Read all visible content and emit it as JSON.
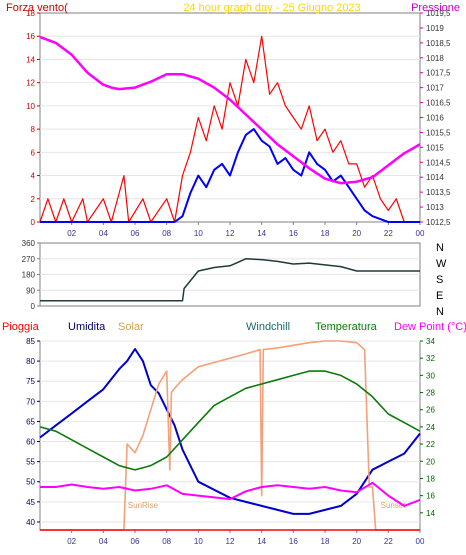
{
  "chart_data": [
    {
      "type": "line",
      "title": "24 hour graph day - 25 Giugno 2023",
      "left_label": "Forza vento(",
      "right_label": "Pressione",
      "x_tick_labels": [
        "02",
        "04",
        "06",
        "08",
        "10",
        "12",
        "14",
        "16",
        "18",
        "20",
        "22",
        "00"
      ],
      "x_range": [
        0,
        24
      ],
      "ylim_left": [
        0,
        18
      ],
      "y_tick_labels_left": [
        "0",
        "2",
        "4",
        "6",
        "8",
        "10",
        "12",
        "14",
        "16",
        "18"
      ],
      "ylim_right": [
        1012.5,
        1019.5
      ],
      "y_tick_labels_right": [
        "1012,5",
        "1013",
        "1013,5",
        "1014",
        "1014,5",
        "1015",
        "1015,5",
        "1016",
        "1016,5",
        "1017",
        "1017,5",
        "1018",
        "1018,5",
        "1019",
        "1019,5"
      ],
      "colors": {
        "gust": "#ff0000",
        "wind": "#0000ff",
        "pressure": "#ff00ff",
        "left_axis": "#cc0000",
        "right_axis": "#cc00cc",
        "title": "#ffd700"
      },
      "series": [
        {
          "key": "gust",
          "values": [
            [
              0,
              0
            ],
            [
              0.5,
              2
            ],
            [
              1,
              0
            ],
            [
              1.5,
              2
            ],
            [
              2,
              0
            ],
            [
              2.7,
              2
            ],
            [
              3,
              0
            ],
            [
              4,
              2
            ],
            [
              4.5,
              0
            ],
            [
              5.3,
              4
            ],
            [
              5.6,
              0
            ],
            [
              6.5,
              2
            ],
            [
              7,
              0
            ],
            [
              8,
              2
            ],
            [
              8.5,
              0
            ],
            [
              9,
              4
            ],
            [
              9.5,
              6
            ],
            [
              10,
              9
            ],
            [
              10.5,
              7
            ],
            [
              11,
              10
            ],
            [
              11.5,
              8
            ],
            [
              12,
              12
            ],
            [
              12.5,
              10
            ],
            [
              13,
              14
            ],
            [
              13.5,
              12
            ],
            [
              14,
              16
            ],
            [
              14.5,
              11
            ],
            [
              15,
              12
            ],
            [
              15.5,
              10
            ],
            [
              16,
              9
            ],
            [
              16.5,
              8
            ],
            [
              17,
              10
            ],
            [
              17.5,
              7
            ],
            [
              18,
              8
            ],
            [
              18.5,
              6
            ],
            [
              19,
              7
            ],
            [
              19.5,
              5
            ],
            [
              20,
              5
            ],
            [
              20.5,
              3
            ],
            [
              21,
              4
            ],
            [
              21.5,
              2
            ],
            [
              22,
              1
            ],
            [
              22.5,
              2
            ],
            [
              23,
              0
            ],
            [
              24,
              0
            ]
          ]
        },
        {
          "key": "wind",
          "values": [
            [
              0,
              0
            ],
            [
              3,
              0
            ],
            [
              5,
              0
            ],
            [
              8.5,
              0
            ],
            [
              9,
              0.5
            ],
            [
              9.5,
              2.5
            ],
            [
              10,
              4
            ],
            [
              10.5,
              3
            ],
            [
              11,
              4.5
            ],
            [
              11.5,
              5
            ],
            [
              12,
              4
            ],
            [
              12.5,
              6
            ],
            [
              13,
              7.5
            ],
            [
              13.5,
              8
            ],
            [
              14,
              7
            ],
            [
              14.5,
              6.5
            ],
            [
              15,
              5
            ],
            [
              15.5,
              5.5
            ],
            [
              16,
              4.5
            ],
            [
              16.5,
              4
            ],
            [
              17,
              6
            ],
            [
              17.5,
              5
            ],
            [
              18,
              4.5
            ],
            [
              18.5,
              3.5
            ],
            [
              19,
              4
            ],
            [
              19.5,
              3
            ],
            [
              20,
              2
            ],
            [
              20.5,
              1
            ],
            [
              21,
              0.5
            ],
            [
              22,
              0
            ],
            [
              24,
              0
            ]
          ]
        },
        {
          "key": "pressure",
          "values": [
            [
              0,
              1018.7
            ],
            [
              1,
              1018.5
            ],
            [
              2,
              1018.1
            ],
            [
              3,
              1017.5
            ],
            [
              4,
              1017.1
            ],
            [
              4.5,
              1017.0
            ],
            [
              5,
              1016.95
            ],
            [
              6,
              1017.0
            ],
            [
              7,
              1017.2
            ],
            [
              8,
              1017.45
            ],
            [
              9,
              1017.45
            ],
            [
              10,
              1017.3
            ],
            [
              11,
              1017.0
            ],
            [
              12,
              1016.6
            ],
            [
              13,
              1016.1
            ],
            [
              14,
              1015.6
            ],
            [
              15,
              1015.1
            ],
            [
              16,
              1014.7
            ],
            [
              17,
              1014.3
            ],
            [
              18,
              1013.95
            ],
            [
              19,
              1013.8
            ],
            [
              20,
              1013.85
            ],
            [
              21,
              1014.0
            ],
            [
              22,
              1014.4
            ],
            [
              23,
              1014.8
            ],
            [
              24,
              1015.1
            ]
          ]
        }
      ]
    },
    {
      "type": "line",
      "x_range": [
        0,
        24
      ],
      "ylim_left": [
        0,
        360
      ],
      "y_tick_labels_left": [
        "0",
        "90",
        "180",
        "270",
        "360"
      ],
      "right_labels": [
        "N",
        "W",
        "S",
        "E",
        "N"
      ],
      "colors": {
        "direction": "#1f3a3a",
        "left_axis": "#333333"
      },
      "series": [
        {
          "key": "direction",
          "values": [
            [
              0,
              30
            ],
            [
              9,
              30
            ],
            [
              9.1,
              100
            ],
            [
              10,
              200
            ],
            [
              11,
              220
            ],
            [
              12,
              230
            ],
            [
              12.5,
              250
            ],
            [
              13,
              270
            ],
            [
              14,
              265
            ],
            [
              15,
              255
            ],
            [
              16,
              240
            ],
            [
              17,
              245
            ],
            [
              18,
              235
            ],
            [
              19,
              225
            ],
            [
              20,
              200
            ],
            [
              24,
              200
            ]
          ]
        }
      ]
    },
    {
      "type": "line",
      "legend": [
        "Pioggia",
        "Umidita",
        "Solar",
        "Windchill",
        "Temperatura",
        "Dew Point (°C)"
      ],
      "x_tick_labels": [
        "02",
        "04",
        "06",
        "08",
        "10",
        "12",
        "14",
        "16",
        "18",
        "20",
        "22",
        "00"
      ],
      "x_range": [
        0,
        24
      ],
      "ylim_left": [
        38,
        85
      ],
      "y_tick_labels_left": [
        "40",
        "45",
        "50",
        "55",
        "60",
        "65",
        "70",
        "75",
        "80",
        "85"
      ],
      "ylim_right": [
        12,
        34
      ],
      "y_tick_labels_right": [
        "14",
        "16",
        "18",
        "20",
        "22",
        "24",
        "26",
        "28",
        "30",
        "32",
        "34"
      ],
      "annotations": [
        "SunRise",
        "Sunset"
      ],
      "colors": {
        "rain": "#ff0000",
        "humidity": "#0000cc",
        "solar": "#f4a07a",
        "windchill": "#228b22",
        "temperature": "#0b7a0b",
        "dewpoint": "#ff00ff",
        "left_axis": "#000066",
        "right_axis": "#006600"
      },
      "series": [
        {
          "key": "humidity",
          "axis": "left",
          "values": [
            [
              0,
              61
            ],
            [
              1,
              64
            ],
            [
              2,
              67
            ],
            [
              3,
              70
            ],
            [
              4,
              73
            ],
            [
              5,
              78
            ],
            [
              5.5,
              80
            ],
            [
              6,
              83
            ],
            [
              6.5,
              80
            ],
            [
              7,
              74
            ],
            [
              7.5,
              72
            ],
            [
              8,
              68
            ],
            [
              8.5,
              64
            ],
            [
              9,
              58
            ],
            [
              9.5,
              54
            ],
            [
              10,
              50
            ],
            [
              11,
              48
            ],
            [
              12,
              46
            ],
            [
              13,
              45
            ],
            [
              14,
              44
            ],
            [
              15,
              43
            ],
            [
              16,
              42
            ],
            [
              17,
              42
            ],
            [
              18,
              43
            ],
            [
              19,
              44
            ],
            [
              20,
              47
            ],
            [
              21,
              53
            ],
            [
              22,
              55
            ],
            [
              23,
              57
            ],
            [
              24,
              62
            ]
          ]
        },
        {
          "key": "solar",
          "axis": "right",
          "values": [
            [
              0,
              12
            ],
            [
              5.3,
              12
            ],
            [
              5.5,
              22
            ],
            [
              6,
              21
            ],
            [
              6.5,
              23
            ],
            [
              7,
              26
            ],
            [
              7.5,
              29
            ],
            [
              8,
              30.5
            ],
            [
              8.2,
              19
            ],
            [
              8.3,
              28
            ],
            [
              8.5,
              28.5
            ],
            [
              9,
              29.5
            ],
            [
              10,
              31
            ],
            [
              11,
              31.5
            ],
            [
              12,
              32
            ],
            [
              13,
              32.5
            ],
            [
              13.9,
              33
            ],
            [
              14,
              16
            ],
            [
              14.1,
              33
            ],
            [
              15,
              33.2
            ],
            [
              16,
              33.5
            ],
            [
              17,
              33.8
            ],
            [
              18,
              34
            ],
            [
              19,
              34
            ],
            [
              20,
              33.8
            ],
            [
              20.5,
              33
            ],
            [
              20.8,
              17
            ],
            [
              21,
              17
            ],
            [
              21.2,
              12
            ],
            [
              24,
              12
            ]
          ]
        },
        {
          "key": "temperature",
          "axis": "right",
          "values": [
            [
              0,
              24
            ],
            [
              1,
              23.5
            ],
            [
              2,
              22.5
            ],
            [
              3,
              21.5
            ],
            [
              4,
              20.5
            ],
            [
              5,
              19.5
            ],
            [
              6,
              19
            ],
            [
              7,
              19.5
            ],
            [
              8,
              20.5
            ],
            [
              9,
              22.5
            ],
            [
              10,
              24.5
            ],
            [
              11,
              26.5
            ],
            [
              12,
              27.5
            ],
            [
              13,
              28.5
            ],
            [
              14,
              29
            ],
            [
              15,
              29.5
            ],
            [
              16,
              30
            ],
            [
              17,
              30.5
            ],
            [
              18,
              30.5
            ],
            [
              19,
              30
            ],
            [
              20,
              29
            ],
            [
              21,
              27.5
            ],
            [
              22,
              25.5
            ],
            [
              23,
              24.5
            ],
            [
              24,
              23.5
            ]
          ]
        },
        {
          "key": "dewpoint",
          "axis": "right",
          "values": [
            [
              0,
              17
            ],
            [
              1,
              17
            ],
            [
              2,
              17.3
            ],
            [
              3,
              17
            ],
            [
              4,
              16.8
            ],
            [
              5,
              17
            ],
            [
              6,
              16.6
            ],
            [
              7,
              16.8
            ],
            [
              8,
              17.2
            ],
            [
              9,
              16.2
            ],
            [
              10,
              16
            ],
            [
              11,
              15.8
            ],
            [
              12,
              15.6
            ],
            [
              13,
              16.5
            ],
            [
              14,
              17
            ],
            [
              15,
              17.2
            ],
            [
              16,
              17
            ],
            [
              17,
              16.8
            ],
            [
              18,
              17
            ],
            [
              19,
              16.6
            ],
            [
              20,
              16.4
            ],
            [
              21,
              17.5
            ],
            [
              22,
              16
            ],
            [
              23,
              14.8
            ],
            [
              24,
              15.5
            ]
          ]
        },
        {
          "key": "rain",
          "axis": "left",
          "values": [
            [
              0,
              38
            ],
            [
              24,
              38
            ]
          ]
        }
      ]
    }
  ]
}
